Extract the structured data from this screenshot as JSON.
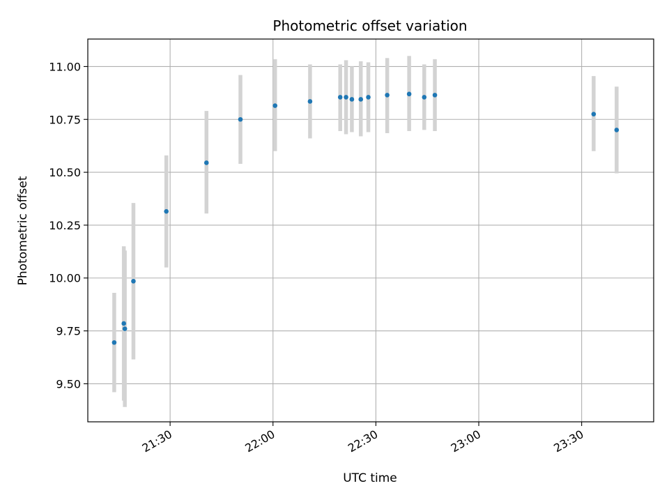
{
  "chart_data": {
    "type": "scatter",
    "title": "Photometric offset variation",
    "xlabel": "UTC time",
    "ylabel": "Photometric offset",
    "grid": true,
    "xlim": [
      "21:06:00",
      "23:51:00"
    ],
    "ylim": [
      9.32,
      11.13
    ],
    "x_ticks": [
      "21:30",
      "22:00",
      "22:30",
      "23:00",
      "23:30"
    ],
    "y_ticks": [
      "9.50",
      "9.75",
      "10.00",
      "10.25",
      "10.50",
      "10.75",
      "11.00"
    ],
    "point_color": "#1f77b4",
    "errorbar_color": "#d3d3d3",
    "series": [
      {
        "points": [
          {
            "x": "21:13:42",
            "y": 9.695,
            "err_low": 9.46,
            "err_high": 9.93
          },
          {
            "x": "21:16:30",
            "y": 9.785,
            "err_low": 9.42,
            "err_high": 10.15
          },
          {
            "x": "21:16:48",
            "y": 9.76,
            "err_low": 9.39,
            "err_high": 10.13
          },
          {
            "x": "21:19:18",
            "y": 9.985,
            "err_low": 9.615,
            "err_high": 10.355
          },
          {
            "x": "21:28:54",
            "y": 10.315,
            "err_low": 10.05,
            "err_high": 10.58
          },
          {
            "x": "21:40:36",
            "y": 10.545,
            "err_low": 10.305,
            "err_high": 10.79
          },
          {
            "x": "21:50:30",
            "y": 10.75,
            "err_low": 10.54,
            "err_high": 10.96
          },
          {
            "x": "22:00:36",
            "y": 10.815,
            "err_low": 10.6,
            "err_high": 11.035
          },
          {
            "x": "22:10:48",
            "y": 10.835,
            "err_low": 10.66,
            "err_high": 11.01
          },
          {
            "x": "22:19:36",
            "y": 10.855,
            "err_low": 10.695,
            "err_high": 11.01
          },
          {
            "x": "22:21:18",
            "y": 10.855,
            "err_low": 10.68,
            "err_high": 11.03
          },
          {
            "x": "22:23:00",
            "y": 10.845,
            "err_low": 10.69,
            "err_high": 11.0
          },
          {
            "x": "22:25:36",
            "y": 10.845,
            "err_low": 10.67,
            "err_high": 11.025
          },
          {
            "x": "22:27:48",
            "y": 10.855,
            "err_low": 10.69,
            "err_high": 11.02
          },
          {
            "x": "22:33:18",
            "y": 10.865,
            "err_low": 10.685,
            "err_high": 11.04
          },
          {
            "x": "22:39:42",
            "y": 10.87,
            "err_low": 10.695,
            "err_high": 11.05
          },
          {
            "x": "22:44:06",
            "y": 10.855,
            "err_low": 10.7,
            "err_high": 11.01
          },
          {
            "x": "22:47:12",
            "y": 10.865,
            "err_low": 10.695,
            "err_high": 11.035
          },
          {
            "x": "23:33:30",
            "y": 10.775,
            "err_low": 10.6,
            "err_high": 10.955
          },
          {
            "x": "23:40:12",
            "y": 10.7,
            "err_low": 10.495,
            "err_high": 10.905
          }
        ]
      }
    ]
  }
}
